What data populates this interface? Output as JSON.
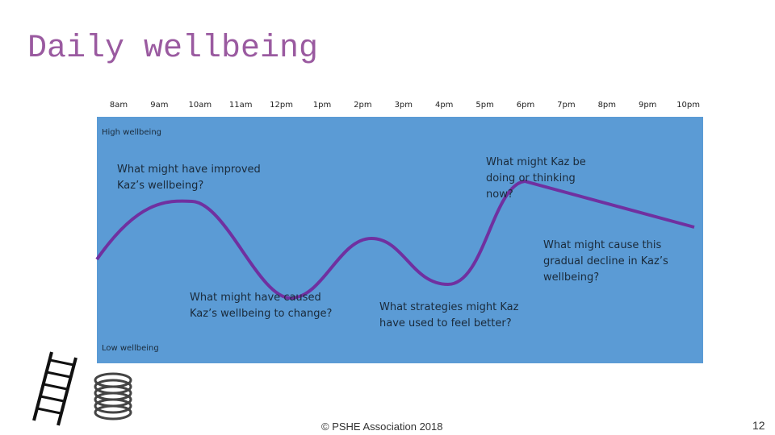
{
  "title": "Daily wellbeing",
  "times": [
    "8am",
    "9am",
    "10am",
    "11am",
    "12pm",
    "1pm",
    "2pm",
    "3pm",
    "4pm",
    "5pm",
    "6pm",
    "7pm",
    "8pm",
    "9pm",
    "10pm"
  ],
  "scale": {
    "high": "High wellbeing",
    "low": "Low wellbeing"
  },
  "questions": [
    "What might have improved Kaz’s wellbeing?",
    "What might Kaz be doing or thinking now?",
    "What might cause this gradual decline in Kaz’s wellbeing?",
    "What might have caused Kaz’s wellbeing to change?",
    "What strategies might Kaz have used to feel better?"
  ],
  "footer": "© PSHE Association 2018",
  "page_number": "12"
}
